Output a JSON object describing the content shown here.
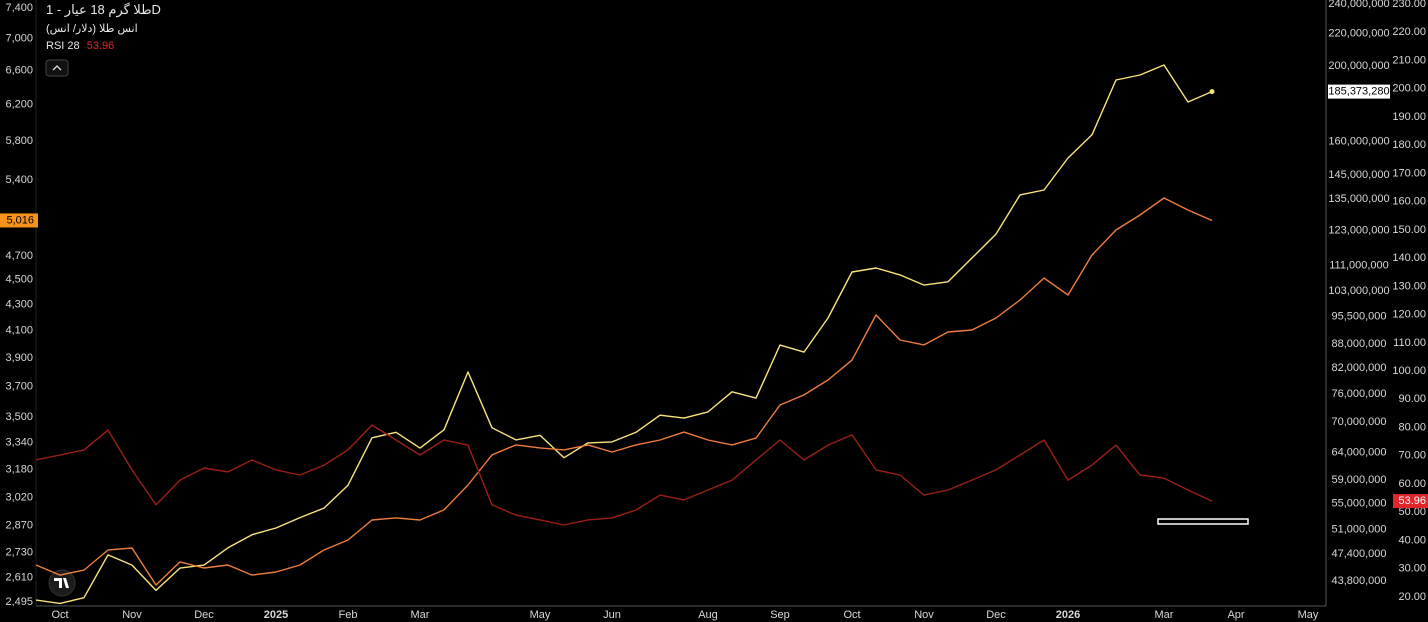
{
  "chart_data": {
    "type": "line",
    "title": "طلا گرم 18 عیار - 1D",
    "categories": [
      null,
      "Oct",
      null,
      null,
      "Nov",
      null,
      null,
      "Dec",
      null,
      null,
      "2025",
      null,
      null,
      "Feb",
      null,
      null,
      "Mar",
      null,
      null,
      null,
      null,
      "May",
      null,
      null,
      "Jun",
      null,
      null,
      null,
      "Aug",
      null,
      null,
      "Sep",
      null,
      null,
      "Oct",
      null,
      null,
      "Nov",
      null,
      null,
      "Dec",
      null,
      null,
      "2026",
      null,
      null,
      null,
      "Mar",
      null,
      null,
      "Apr",
      null,
      null,
      "May"
    ],
    "ylog": true,
    "y2log": true,
    "ylim": [
      2495,
      7400
    ],
    "yticks": [
      {
        "value": 2495,
        "label": "2,495"
      },
      {
        "value": 2610,
        "label": "2,610"
      },
      {
        "value": 2730,
        "label": "2,730"
      },
      {
        "value": 2870,
        "label": "2,870"
      },
      {
        "value": 3020,
        "label": "3,020"
      },
      {
        "value": 3180,
        "label": "3,180"
      },
      {
        "value": 3340,
        "label": "3,340"
      },
      {
        "value": 3500,
        "label": "3,500"
      },
      {
        "value": 3700,
        "label": "3,700"
      },
      {
        "value": 3900,
        "label": "3,900"
      },
      {
        "value": 4100,
        "label": "4,100"
      },
      {
        "value": 4300,
        "label": "4,300"
      },
      {
        "value": 4500,
        "label": "4,500"
      },
      {
        "value": 4700,
        "label": "4,700"
      },
      {
        "value": 5400,
        "label": "5,400"
      },
      {
        "value": 5800,
        "label": "5,800"
      },
      {
        "value": 6200,
        "label": "6,200"
      },
      {
        "value": 6600,
        "label": "6,600"
      },
      {
        "value": 7000,
        "label": "7,000"
      },
      {
        "value": 7400,
        "label": "7,400"
      }
    ],
    "y2lim": [
      43800000,
      240000000
    ],
    "y2ticks": [
      {
        "value": 43800000,
        "label": "43,800,000"
      },
      {
        "value": 47400000,
        "label": "47,400,000"
      },
      {
        "value": 51000000,
        "label": "51,000,000"
      },
      {
        "value": 55000000,
        "label": "55,000,000"
      },
      {
        "value": 59000000,
        "label": "59,000,000"
      },
      {
        "value": 64000000,
        "label": "64,000,000"
      },
      {
        "value": 70000000,
        "label": "70,000,000"
      },
      {
        "value": 76000000,
        "label": "76,000,000"
      },
      {
        "value": 82000000,
        "label": "82,000,000"
      },
      {
        "value": 88000000,
        "label": "88,000,000"
      },
      {
        "value": 95500000,
        "label": "95,500,000"
      },
      {
        "value": 103000000,
        "label": "103,000,000"
      },
      {
        "value": 111000000,
        "label": "111,000,000"
      },
      {
        "value": 123000000,
        "label": "123,000,000"
      },
      {
        "value": 135000000,
        "label": "135,000,000"
      },
      {
        "value": 145000000,
        "label": "145,000,000"
      },
      {
        "value": 160000000,
        "label": "160,000,000"
      },
      {
        "value": 200000000,
        "label": "200,000,000"
      },
      {
        "value": 220000000,
        "label": "220,000,000"
      },
      {
        "value": 240000000,
        "label": "240,000,000"
      }
    ],
    "y3lim": [
      20,
      230
    ],
    "y3ticks": [
      {
        "value": 20,
        "label": "20.00"
      },
      {
        "value": 30,
        "label": "30.00"
      },
      {
        "value": 40,
        "label": "40.00"
      },
      {
        "value": 50,
        "label": "50.00"
      },
      {
        "value": 60,
        "label": "60.00"
      },
      {
        "value": 70,
        "label": "70.00"
      },
      {
        "value": 80,
        "label": "80.00"
      },
      {
        "value": 90,
        "label": "90.00"
      },
      {
        "value": 100,
        "label": "100.00"
      },
      {
        "value": 110,
        "label": "110.00"
      },
      {
        "value": 120,
        "label": "120.00"
      },
      {
        "value": 130,
        "label": "130.00"
      },
      {
        "value": 140,
        "label": "140.00"
      },
      {
        "value": 150,
        "label": "150.00"
      },
      {
        "value": 160,
        "label": "160.00"
      },
      {
        "value": 170,
        "label": "170.00"
      },
      {
        "value": 180,
        "label": "180.00"
      },
      {
        "value": 190,
        "label": "190.00"
      },
      {
        "value": 200,
        "label": "200.00"
      },
      {
        "value": 210,
        "label": "210.00"
      },
      {
        "value": 220,
        "label": "220.00"
      },
      {
        "value": 230,
        "label": "230.00"
      }
    ],
    "series": [
      {
        "color": "#f9e47c",
        "axis": "y2",
        "values": [
          41400000,
          41000000,
          41700000,
          47300000,
          45900000,
          42600000,
          45500000,
          45900000,
          48300000,
          50200000,
          51200000,
          52800000,
          54300000,
          58100000,
          66800000,
          67900000,
          64800000,
          68400000,
          81100000,
          68800000,
          66400000,
          67300000,
          63000000,
          65800000,
          66000000,
          67900000,
          71400000,
          70800000,
          72100000,
          76500000,
          75100000,
          87800000,
          86000000,
          95100000,
          108900000,
          110200000,
          108000000,
          104800000,
          105800000,
          113500000,
          121800000,
          136700000,
          138700000,
          152400000,
          163200000,
          191800000,
          194700000,
          200500000,
          179800000,
          185373280,
          null,
          null,
          null,
          null
        ],
        "value_labels": [
          null,
          null,
          null,
          null,
          null,
          null,
          null,
          null,
          null,
          null,
          null,
          null,
          null,
          null,
          null,
          null,
          null,
          null,
          null,
          null,
          null,
          null,
          null,
          null,
          null,
          null,
          null,
          null,
          null,
          null,
          null,
          null,
          null,
          null,
          null,
          null,
          null,
          null,
          null,
          null,
          null,
          null,
          null,
          null,
          null,
          null,
          null,
          null,
          null,
          "185,373,280",
          null,
          null,
          null,
          null
        ]
      },
      {
        "name": "انس طلا (دلار/ انس)",
        "color": "#ef7d3c",
        "axis": "y",
        "values": [
          2670,
          2621,
          2645,
          2744,
          2754,
          2574,
          2685,
          2655,
          2670,
          2621,
          2636,
          2670,
          2744,
          2795,
          2899,
          2910,
          2899,
          2953,
          3091,
          3266,
          3326,
          3308,
          3296,
          3326,
          3283,
          3326,
          3356,
          3405,
          3356,
          3326,
          3368,
          3578,
          3645,
          3746,
          3885,
          4219,
          4030,
          3994,
          4090,
          4105,
          4196,
          4336,
          4514,
          4376,
          4709,
          4929,
          5066,
          5226,
          5113,
          5016,
          null,
          null,
          null,
          null
        ],
        "value_labels": [
          null,
          null,
          null,
          null,
          null,
          null,
          null,
          null,
          null,
          null,
          null,
          null,
          null,
          null,
          null,
          null,
          null,
          null,
          null,
          null,
          null,
          null,
          null,
          null,
          null,
          null,
          null,
          null,
          null,
          null,
          null,
          null,
          null,
          null,
          null,
          null,
          null,
          null,
          null,
          null,
          null,
          null,
          null,
          null,
          null,
          null,
          null,
          null,
          null,
          "5,016",
          null,
          null,
          null,
          null
        ]
      },
      {
        "name": "RSI 28",
        "color": "#9b1f17",
        "axis": "y3",
        "values": [
          68.5,
          70.3,
          72.1,
          79.1,
          65,
          52.6,
          61.4,
          65.7,
          64.3,
          68.5,
          65,
          63.2,
          66.7,
          72.1,
          80.9,
          75.6,
          70.3,
          75.6,
          73.8,
          52.6,
          49,
          47.3,
          45.5,
          47.3,
          48,
          50.8,
          56.1,
          54.4,
          57.9,
          61.4,
          68.5,
          75.6,
          68.5,
          73.8,
          77.4,
          65,
          63.2,
          56.1,
          57.9,
          61.4,
          65,
          70.3,
          75.6,
          61.4,
          66.7,
          73.8,
          63.2,
          62.1,
          57.9,
          53.96,
          null,
          null,
          null,
          null
        ]
      }
    ]
  }
}
